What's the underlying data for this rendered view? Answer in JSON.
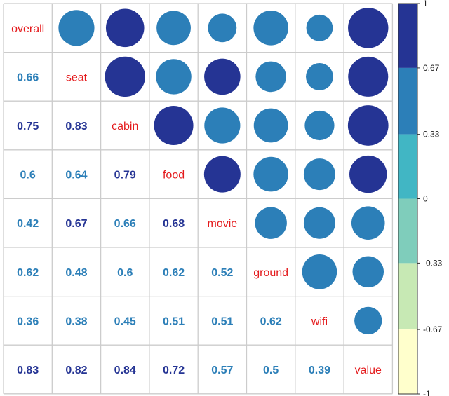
{
  "chart_data": {
    "type": "heatmap",
    "variables": [
      "overall",
      "seat",
      "cabin",
      "food",
      "movie",
      "ground",
      "wifi",
      "value"
    ],
    "matrix": [
      [
        1.0,
        0.66,
        0.75,
        0.6,
        0.42,
        0.62,
        0.36,
        0.83
      ],
      [
        0.66,
        1.0,
        0.83,
        0.64,
        0.67,
        0.48,
        0.38,
        0.82
      ],
      [
        0.75,
        0.83,
        1.0,
        0.79,
        0.66,
        0.6,
        0.45,
        0.84
      ],
      [
        0.6,
        0.64,
        0.79,
        1.0,
        0.68,
        0.62,
        0.51,
        0.72
      ],
      [
        0.42,
        0.67,
        0.66,
        0.68,
        1.0,
        0.52,
        0.51,
        0.57
      ],
      [
        0.62,
        0.48,
        0.6,
        0.62,
        0.52,
        1.0,
        0.62,
        0.5
      ],
      [
        0.36,
        0.38,
        0.45,
        0.51,
        0.51,
        0.62,
        1.0,
        0.39
      ],
      [
        0.83,
        0.82,
        0.84,
        0.72,
        0.57,
        0.5,
        0.39,
        1.0
      ]
    ],
    "value_labels": [
      [
        "",
        "",
        "",
        "",
        "",
        "",
        "",
        ""
      ],
      [
        "0.66",
        "",
        "",
        "",
        "",
        "",
        "",
        ""
      ],
      [
        "0.75",
        "0.83",
        "",
        "",
        "",
        "",
        "",
        ""
      ],
      [
        "0.6",
        "0.64",
        "0.79",
        "",
        "",
        "",
        "",
        ""
      ],
      [
        "0.42",
        "0.67",
        "0.66",
        "0.68",
        "",
        "",
        "",
        ""
      ],
      [
        "0.62",
        "0.48",
        "0.6",
        "0.62",
        "0.52",
        "",
        "",
        ""
      ],
      [
        "0.36",
        "0.38",
        "0.45",
        "0.51",
        "0.51",
        "0.62",
        "",
        ""
      ],
      [
        "0.83",
        "0.82",
        "0.84",
        "0.72",
        "0.57",
        "0.5",
        "0.39",
        ""
      ]
    ],
    "lower_triangle": "numbers",
    "upper_triangle": "circles",
    "diagonal": "variable names",
    "colorbar": {
      "ticks": [
        "1",
        "0.67",
        "0.33",
        "0",
        "-0.33",
        "-0.67",
        "-1"
      ],
      "tick_values": [
        1,
        0.67,
        0.33,
        0,
        -0.33,
        -0.67,
        -1
      ],
      "bins": [
        {
          "from": 0.67,
          "to": 1.0,
          "color": "#253494"
        },
        {
          "from": 0.33,
          "to": 0.67,
          "color": "#2c7fb8"
        },
        {
          "from": 0.0,
          "to": 0.33,
          "color": "#41b6c4"
        },
        {
          "from": -0.33,
          "to": 0.0,
          "color": "#7fcdbb"
        },
        {
          "from": -0.67,
          "to": -0.33,
          "color": "#c7e9b4"
        },
        {
          "from": -1.0,
          "to": -0.67,
          "color": "#ffffcc"
        }
      ]
    },
    "colors": {
      "diagonal_text": "#e41a1c",
      "grid": "#cccccc",
      "dark_blue": "#253494",
      "mid_blue": "#2c7fb8"
    }
  }
}
